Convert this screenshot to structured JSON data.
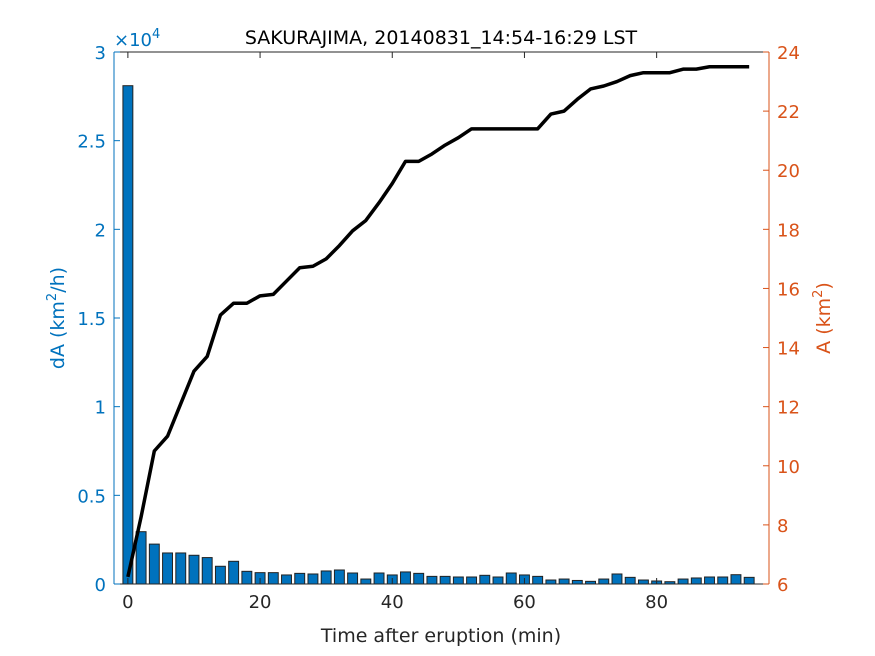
{
  "chart_data": {
    "type": "bar+line",
    "title": "SAKURAJIMA, 20140831_14:54-16:29 LST",
    "xlabel": "Time after eruption (min)",
    "ylabel_left": "dA (km",
    "ylabel_left_sup": "2",
    "ylabel_left_tail": "/h)",
    "ylabel_right": "A (km",
    "ylabel_right_sup": "2",
    "ylabel_right_tail": ")",
    "left_exponent_label": "×10",
    "left_exponent_power": "4",
    "xlim": [
      -2.1,
      97
    ],
    "ylim_left": [
      0,
      3
    ],
    "ylim_right": [
      6,
      24
    ],
    "xticks": [
      "0",
      "20",
      "40",
      "60",
      "80"
    ],
    "yticks_left": [
      "0",
      "0.5",
      "1",
      "1.5",
      "2",
      "2.5",
      "3"
    ],
    "yticks_right": [
      "6",
      "8",
      "10",
      "12",
      "14",
      "16",
      "18",
      "20",
      "22",
      "24"
    ],
    "colors": {
      "left": "#0072BD",
      "right": "#D95319",
      "bar": "#0072BD",
      "line": "#000000",
      "axis": "#262626"
    },
    "series": [
      {
        "name": "dA",
        "type": "bar",
        "axis": "left",
        "unit_scale": 10000,
        "x": [
          0,
          2,
          4,
          6,
          8,
          10,
          12,
          14,
          16,
          18,
          20,
          22,
          24,
          26,
          28,
          30,
          32,
          34,
          36,
          38,
          40,
          42,
          44,
          46,
          48,
          50,
          52,
          54,
          56,
          58,
          60,
          62,
          64,
          66,
          68,
          70,
          72,
          74,
          76,
          78,
          80,
          82,
          84,
          86,
          88,
          90,
          92,
          94
        ],
        "values": [
          28100,
          2950,
          2250,
          1750,
          1750,
          1620,
          1490,
          1000,
          1280,
          715,
          640,
          640,
          510,
          600,
          565,
          735,
          790,
          620,
          280,
          620,
          510,
          680,
          600,
          430,
          430,
          395,
          395,
          490,
          395,
          620,
          510,
          430,
          225,
          280,
          200,
          150,
          280,
          565,
          375,
          225,
          170,
          130,
          280,
          340,
          395,
          395,
          525,
          375
        ]
      },
      {
        "name": "A",
        "type": "line",
        "axis": "right",
        "x": [
          0,
          2,
          4,
          6,
          8,
          10,
          12,
          14,
          16,
          18,
          20,
          22,
          24,
          26,
          28,
          30,
          32,
          34,
          36,
          38,
          40,
          42,
          44,
          46,
          48,
          50,
          52,
          54,
          56,
          58,
          60,
          62,
          64,
          66,
          68,
          70,
          72,
          74,
          76,
          78,
          80,
          82,
          84,
          86,
          88,
          90,
          92,
          94
        ],
        "values": [
          6.24,
          8.27,
          10.5,
          11.0,
          12.1,
          13.2,
          13.7,
          15.1,
          15.5,
          15.5,
          15.75,
          15.8,
          16.25,
          16.7,
          16.75,
          17.0,
          17.45,
          17.95,
          18.3,
          18.9,
          19.55,
          20.3,
          20.3,
          20.55,
          20.85,
          21.1,
          21.4,
          21.4,
          21.4,
          21.4,
          21.4,
          21.4,
          21.9,
          22.0,
          22.4,
          22.75,
          22.85,
          23.0,
          23.2,
          23.3,
          23.3,
          23.3,
          23.42,
          23.42,
          23.5,
          23.5,
          23.5,
          23.5
        ]
      }
    ]
  }
}
